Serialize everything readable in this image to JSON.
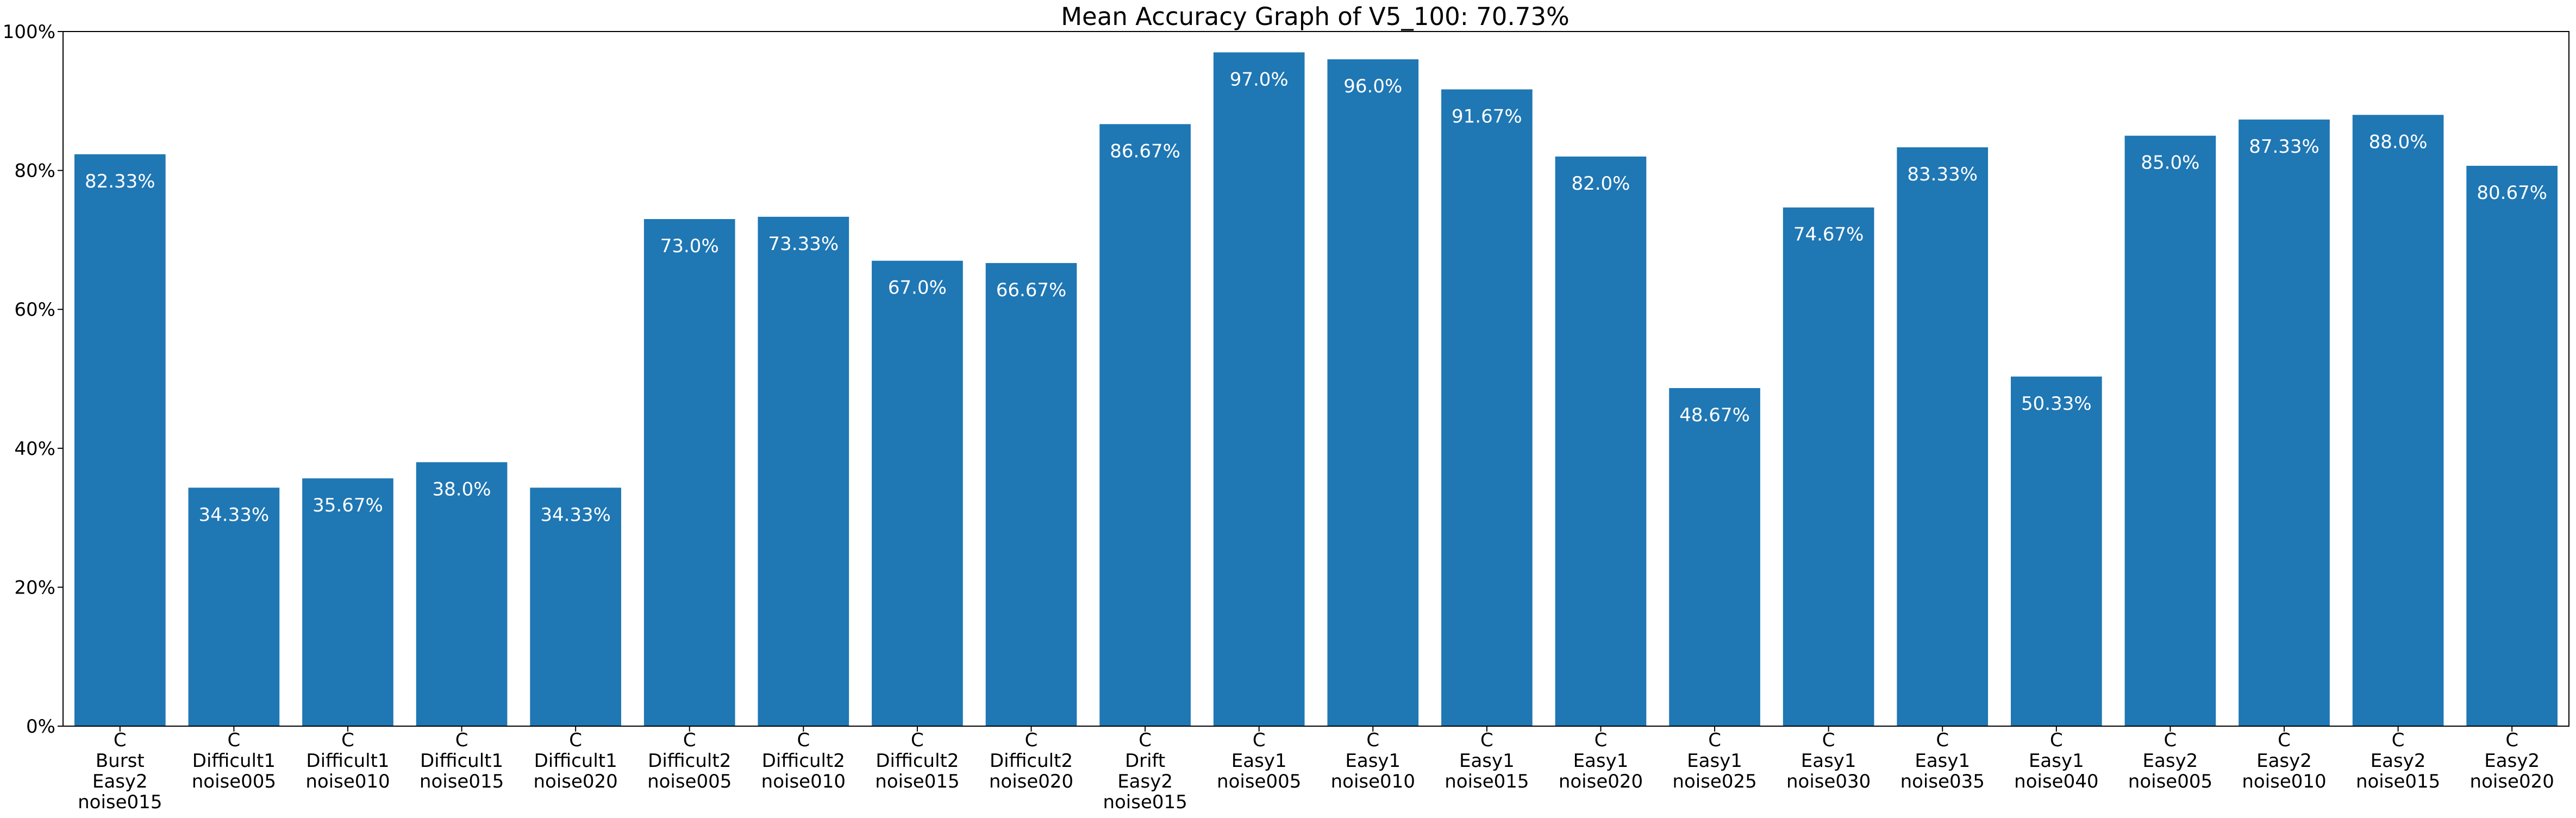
{
  "chart_data": {
    "type": "bar",
    "title": "Mean Accuracy Graph of V5_100: 70.73%",
    "xlabel": "",
    "ylabel": "",
    "ylim": [
      0,
      100
    ],
    "yticks": [
      "0%",
      "20%",
      "40%",
      "60%",
      "80%",
      "100%"
    ],
    "ytick_values": [
      0,
      20,
      40,
      60,
      80,
      100
    ],
    "grid": false,
    "bar_color": "#1f77b4",
    "label_color": "#ffffff",
    "categories": [
      [
        "C",
        "Burst",
        "Easy2",
        "noise015"
      ],
      [
        "C",
        "Difficult1",
        "noise005"
      ],
      [
        "C",
        "Difficult1",
        "noise010"
      ],
      [
        "C",
        "Difficult1",
        "noise015"
      ],
      [
        "C",
        "Difficult1",
        "noise020"
      ],
      [
        "C",
        "Difficult2",
        "noise005"
      ],
      [
        "C",
        "Difficult2",
        "noise010"
      ],
      [
        "C",
        "Difficult2",
        "noise015"
      ],
      [
        "C",
        "Difficult2",
        "noise020"
      ],
      [
        "C",
        "Drift",
        "Easy2",
        "noise015"
      ],
      [
        "C",
        "Easy1",
        "noise005"
      ],
      [
        "C",
        "Easy1",
        "noise010"
      ],
      [
        "C",
        "Easy1",
        "noise015"
      ],
      [
        "C",
        "Easy1",
        "noise020"
      ],
      [
        "C",
        "Easy1",
        "noise025"
      ],
      [
        "C",
        "Easy1",
        "noise030"
      ],
      [
        "C",
        "Easy1",
        "noise035"
      ],
      [
        "C",
        "Easy1",
        "noise040"
      ],
      [
        "C",
        "Easy2",
        "noise005"
      ],
      [
        "C",
        "Easy2",
        "noise010"
      ],
      [
        "C",
        "Easy2",
        "noise015"
      ],
      [
        "C",
        "Easy2",
        "noise020"
      ]
    ],
    "values": [
      82.33,
      34.33,
      35.67,
      38.0,
      34.33,
      73.0,
      73.33,
      67.0,
      66.67,
      86.67,
      97.0,
      96.0,
      91.67,
      82.0,
      48.67,
      74.67,
      83.33,
      50.33,
      85.0,
      87.33,
      88.0,
      80.67
    ],
    "data_labels": [
      "82.33%",
      "34.33%",
      "35.67%",
      "38.0%",
      "34.33%",
      "73.0%",
      "73.33%",
      "67.0%",
      "66.67%",
      "86.67%",
      "97.0%",
      "96.0%",
      "91.67%",
      "82.0%",
      "48.67%",
      "74.67%",
      "83.33%",
      "50.33%",
      "85.0%",
      "87.33%",
      "88.0%",
      "80.67%"
    ]
  }
}
